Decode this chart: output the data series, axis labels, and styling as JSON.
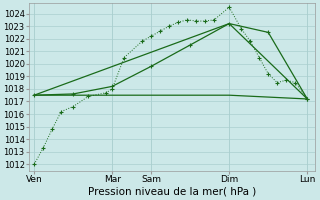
{
  "xlabel": "Pression niveau de la mer( hPa )",
  "bg_color": "#cce8e8",
  "grid_color": "#aacfcf",
  "line_color": "#1a6b1a",
  "ylim": [
    1011.5,
    1024.8
  ],
  "ytick_min": 1012,
  "ytick_max": 1024,
  "day_labels": [
    "Ven",
    "",
    "Mar",
    "Sam",
    "",
    "Dim",
    "",
    "Lun"
  ],
  "line1_x": [
    0,
    0.5,
    1.0,
    1.5,
    2.17,
    3.0,
    4.0,
    4.33,
    5.0,
    6.0,
    6.5,
    7.0,
    7.5,
    8.0,
    8.5,
    9.0,
    9.5,
    10.0,
    10.83,
    11.5,
    12.0,
    12.5,
    13.0,
    13.5,
    14.0,
    14.5,
    15.17
  ],
  "line1_y": [
    1012.0,
    1013.3,
    1014.8,
    1016.2,
    1016.6,
    1017.4,
    1017.7,
    1018.0,
    1020.5,
    1021.8,
    1022.2,
    1022.6,
    1023.0,
    1023.3,
    1023.5,
    1023.4,
    1023.4,
    1023.5,
    1024.5,
    1022.8,
    1021.8,
    1020.5,
    1019.2,
    1018.5,
    1018.7,
    1018.5,
    1017.2
  ],
  "line2_x": [
    0,
    2.17,
    4.33,
    6.5,
    8.67,
    10.83,
    13.0,
    15.17
  ],
  "line2_y": [
    1017.5,
    1017.6,
    1018.2,
    1019.8,
    1021.5,
    1023.2,
    1022.5,
    1017.2
  ],
  "line3_x": [
    0,
    10.83,
    15.17
  ],
  "line3_y": [
    1017.5,
    1023.2,
    1017.2
  ],
  "line4_x": [
    0,
    6.5,
    10.83,
    15.17
  ],
  "line4_y": [
    1017.5,
    1017.5,
    1017.5,
    1017.2
  ],
  "xlim": [
    -0.3,
    15.6
  ],
  "xtick_positions": [
    0,
    4.33,
    6.5,
    10.83,
    15.17
  ],
  "xtick_labels": [
    "Ven",
    "Mar",
    "Sam",
    "Dim",
    "Lun"
  ]
}
